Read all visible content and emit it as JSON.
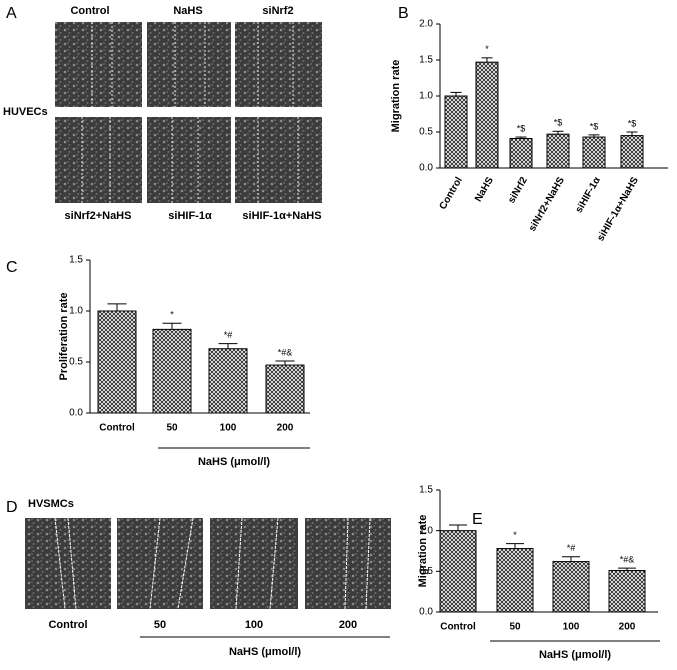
{
  "panels": {
    "A": {
      "letter": "A",
      "row_label": "HUVECs",
      "labels": [
        "Control",
        "NaHS",
        "siNrf2",
        "siNrf2+NaHS",
        "siHIF-1α",
        "siHIF-1α+NaHS"
      ]
    },
    "D": {
      "letter": "D",
      "row_label": "HVSMCs",
      "labels": [
        "Control",
        "50",
        "100",
        "200"
      ],
      "group_label": "NaHS (μmol/l)"
    }
  },
  "chart_data": [
    {
      "type": "bar",
      "panel_letter": "B",
      "y_label": "Migration rate",
      "categories": [
        "Control",
        "NaHS",
        "siNrf2",
        "siNrf2+NaHS",
        "siHIF-1α",
        "siHIF-1α+NaHS"
      ],
      "values": [
        1.0,
        1.47,
        0.41,
        0.47,
        0.43,
        0.45
      ],
      "errors": [
        0.05,
        0.06,
        0.02,
        0.04,
        0.03,
        0.05
      ],
      "annotations": [
        null,
        "*",
        "*$",
        "*$",
        "*$",
        "*$"
      ],
      "ylim": [
        0,
        2
      ],
      "yticks": [
        {
          "value": 0,
          "label": "0.0"
        },
        {
          "value": 0.5,
          "label": "0.5"
        },
        {
          "value": 1,
          "label": "1.0"
        },
        {
          "value": 1.5,
          "label": "1.5"
        },
        {
          "value": 2,
          "label": "2.0"
        }
      ]
    },
    {
      "type": "bar",
      "panel_letter": "C",
      "y_label": "Proliferation rate",
      "x_group_label": "NaHS (μmol/l)",
      "categories": [
        "Control",
        "50",
        "100",
        "200"
      ],
      "values": [
        1.0,
        0.82,
        0.63,
        0.47
      ],
      "errors": [
        0.07,
        0.06,
        0.05,
        0.04
      ],
      "annotations": [
        null,
        "*",
        "*#",
        "*#&"
      ],
      "ylim": [
        0,
        1.5
      ],
      "yticks": [
        {
          "value": 0,
          "label": "0.0"
        },
        {
          "value": 0.5,
          "label": "0.5"
        },
        {
          "value": 1,
          "label": "1.0"
        },
        1.5
      ]
    },
    {
      "type": "bar",
      "panel_letter": "E",
      "y_label": "Migration rate",
      "x_group_label": "NaHS (μmol/l)",
      "categories": [
        "Control",
        "50",
        "100",
        "200"
      ],
      "values": [
        1.0,
        0.78,
        0.62,
        0.51
      ],
      "errors": [
        0.07,
        0.06,
        0.06,
        0.03
      ],
      "annotations": [
        null,
        "*",
        "*#",
        "*#&"
      ],
      "ylim": [
        0,
        1.5
      ],
      "yticks": [
        {
          "value": 0,
          "label": "0.0"
        },
        {
          "value": 0.5,
          "label": "0.5"
        },
        {
          "value": 1,
          "label": "1.0"
        },
        1.5
      ]
    }
  ]
}
